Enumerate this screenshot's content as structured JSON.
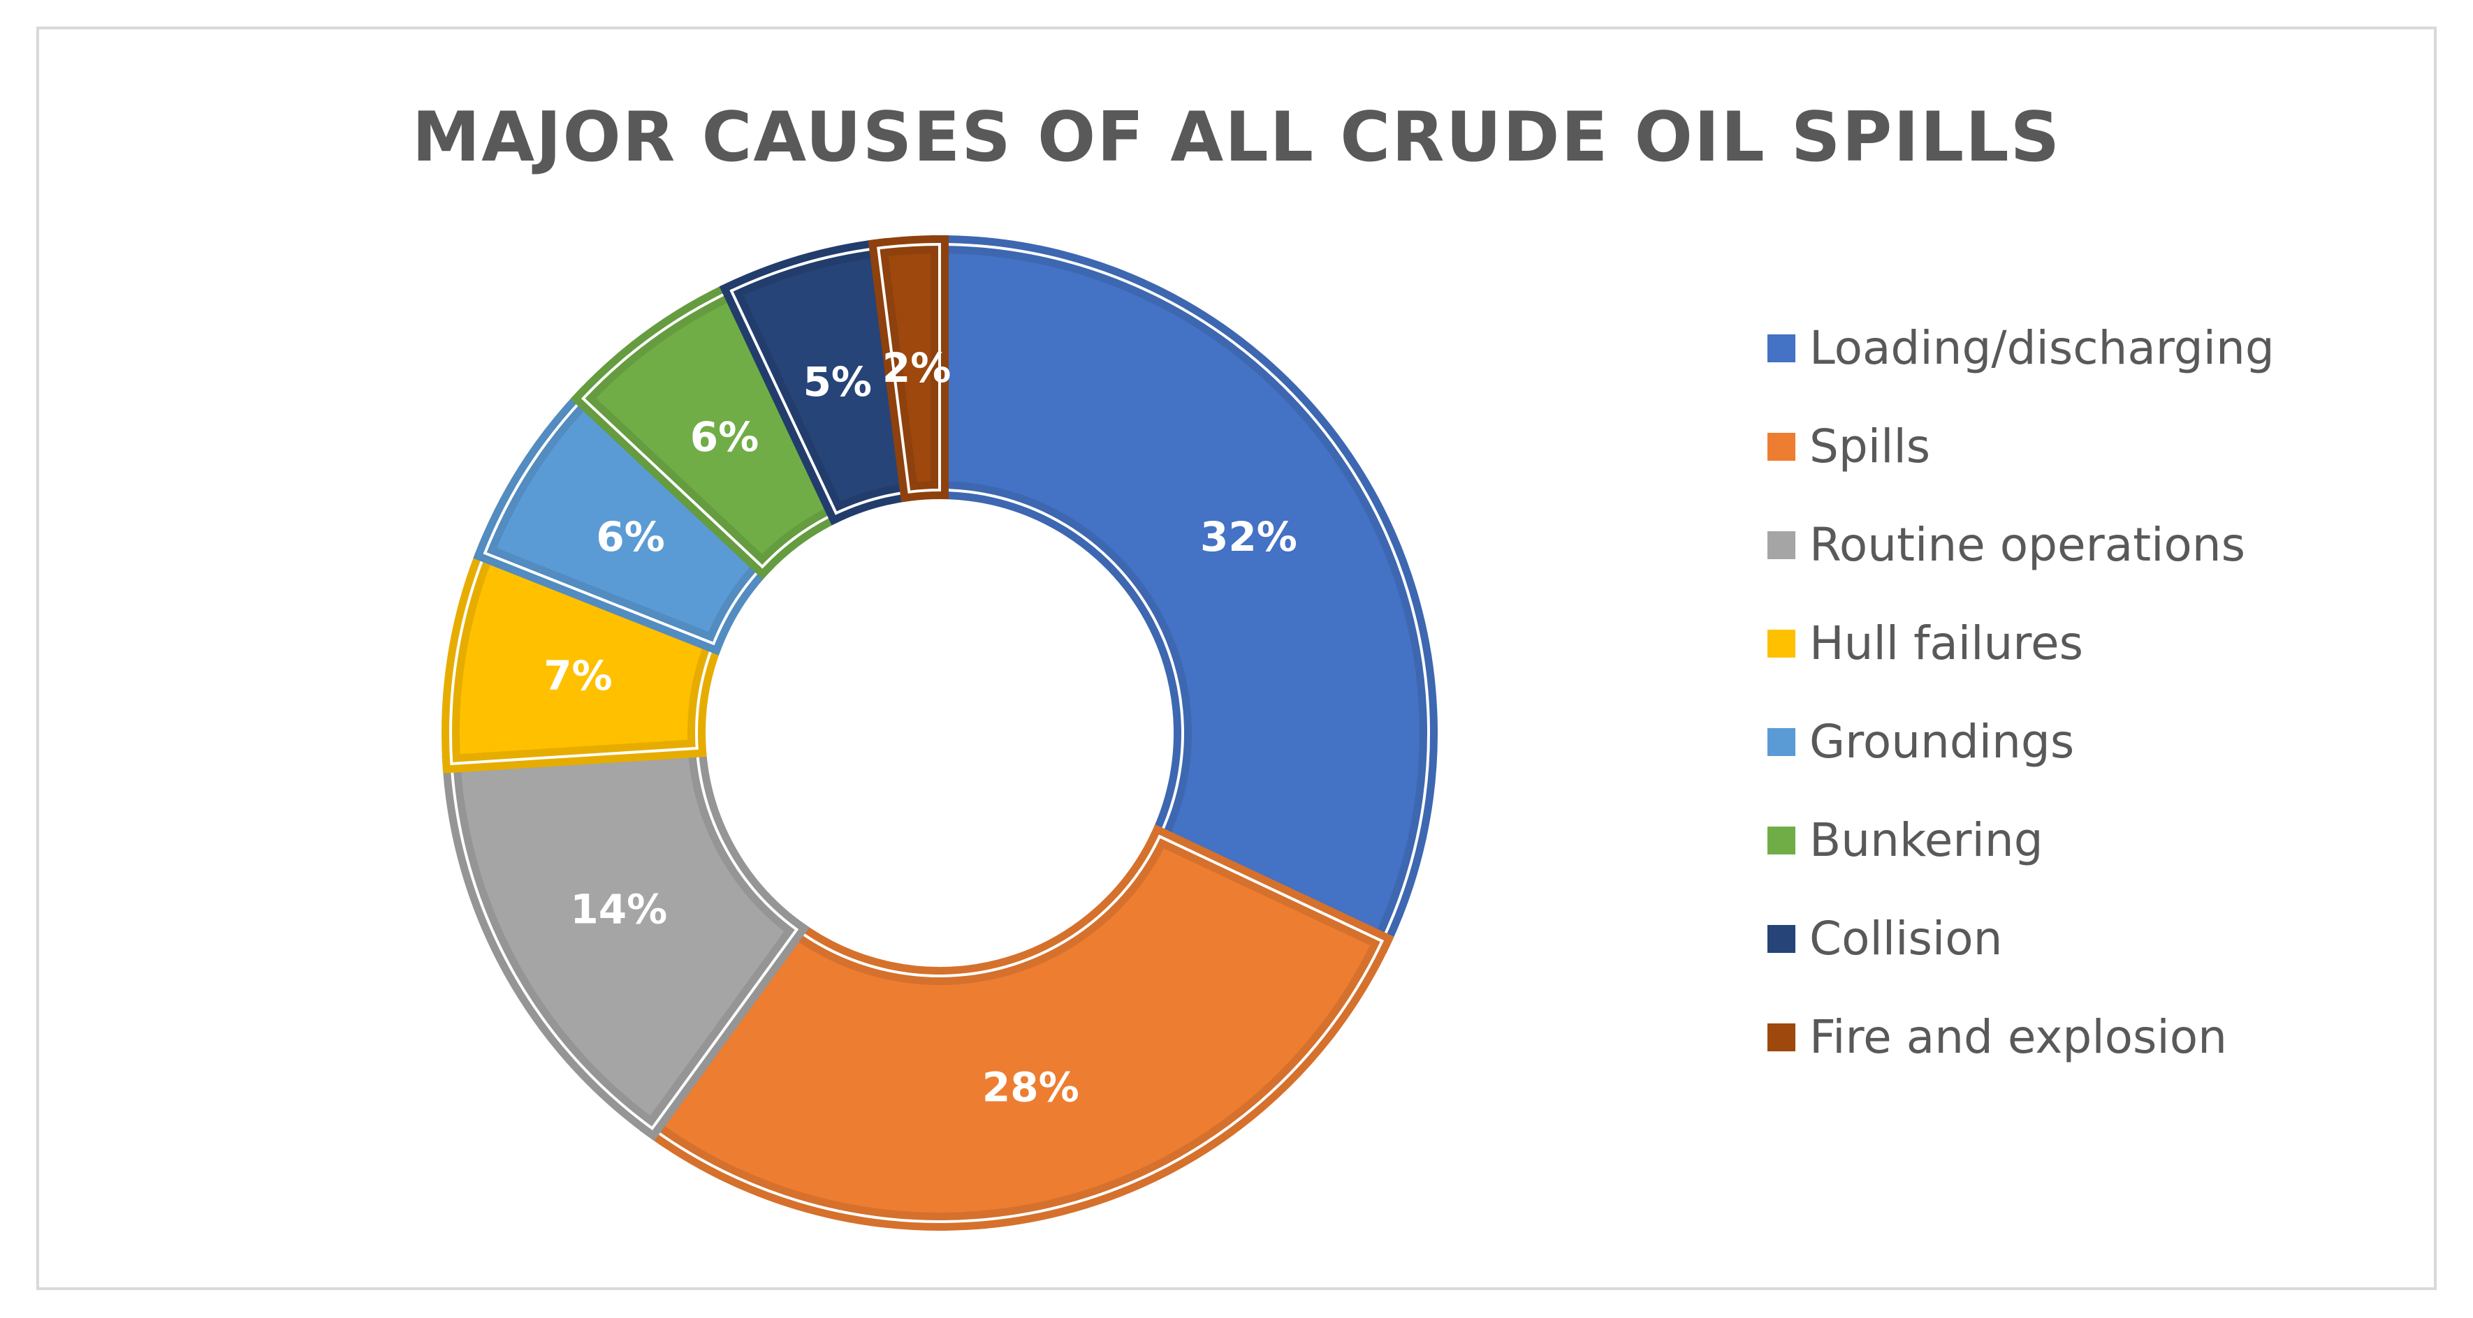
{
  "chart_data": {
    "type": "pie",
    "variant": "donut",
    "title": "MAJOR CAUSES OF ALL CRUDE OIL SPILLS",
    "legend_position": "right",
    "slices": [
      {
        "label": "Loading/discharging",
        "value": 32,
        "display": "32%",
        "color": "#4472C4"
      },
      {
        "label": "Spills",
        "value": 28,
        "display": "28%",
        "color": "#ED7D31"
      },
      {
        "label": "Routine operations",
        "value": 14,
        "display": "14%",
        "color": "#A5A5A5"
      },
      {
        "label": "Hull failures",
        "value": 7,
        "display": "7%",
        "color": "#FFC000"
      },
      {
        "label": "Groundings",
        "value": 6,
        "display": "6%",
        "color": "#5B9BD5"
      },
      {
        "label": "Bunkering",
        "value": 6,
        "display": "6%",
        "color": "#70AD47"
      },
      {
        "label": "Collision",
        "value": 5,
        "display": "5%",
        "color": "#264478"
      },
      {
        "label": "Fire and explosion",
        "value": 2,
        "display": "2%",
        "color": "#9E480E"
      }
    ]
  }
}
